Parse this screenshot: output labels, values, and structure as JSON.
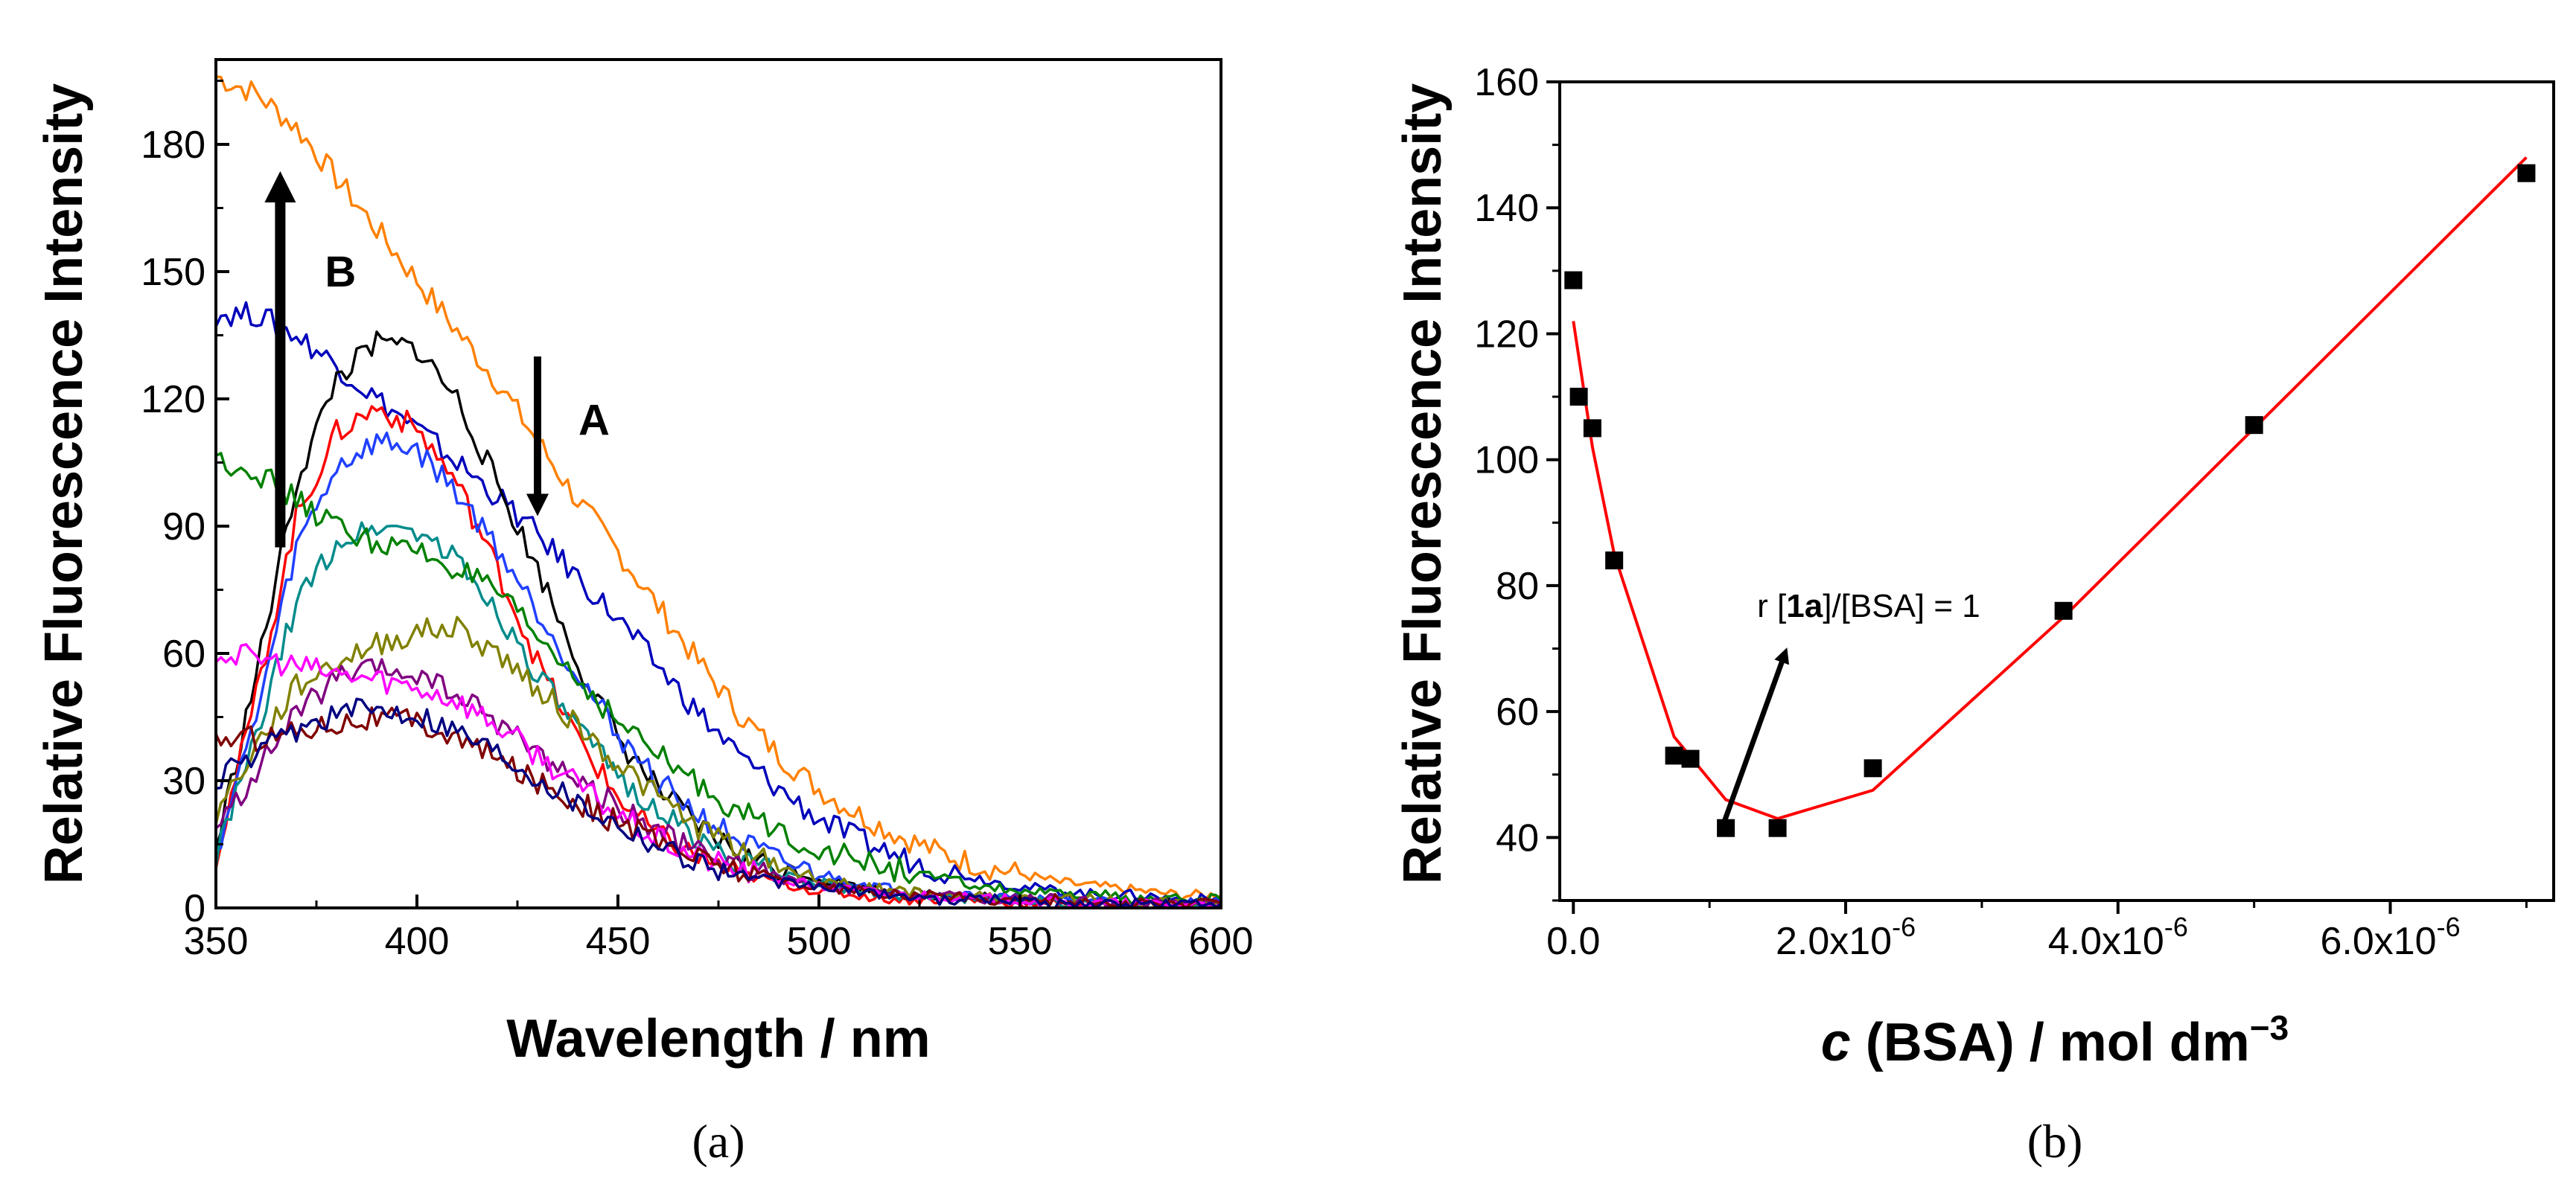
{
  "chart_data": [
    {
      "panel": "(a)",
      "type": "line",
      "xlabel": "Wavelength / nm",
      "ylabel": "Relative Fluorescence Intensity",
      "xlim": [
        350,
        600
      ],
      "ylim": [
        0,
        200
      ],
      "xticks": [
        350,
        400,
        450,
        500,
        550,
        600
      ],
      "yticks": [
        0,
        30,
        60,
        90,
        120,
        150,
        180
      ],
      "annotations": [
        {
          "label": "A",
          "direction": "down",
          "x": 430,
          "y_from": 130,
          "y_to": 95
        },
        {
          "label": "B",
          "direction": "up",
          "x": 366,
          "y_from": 85,
          "y_to": 170
        }
      ],
      "x": [
        350,
        360,
        370,
        380,
        390,
        400,
        410,
        420,
        430,
        440,
        450,
        460,
        470,
        480,
        490,
        500,
        510,
        520,
        530,
        540,
        550,
        560,
        570,
        580,
        590,
        600
      ],
      "series": [
        {
          "name": "orange",
          "color": "#ff8000",
          "values": [
            196,
            192,
            184,
            172,
            160,
            148,
            136,
            124,
            110,
            96,
            84,
            71,
            58,
            46,
            36,
            28,
            22,
            17,
            13,
            10,
            8,
            6,
            5,
            4,
            3,
            3
          ]
        },
        {
          "name": "blue",
          "color": "#0000bb",
          "values": [
            140,
            140,
            135,
            128,
            120,
            113,
            105,
            97,
            88,
            78,
            68,
            57,
            46,
            36,
            28,
            21,
            16,
            12,
            9,
            7,
            5,
            4,
            3,
            3,
            2,
            2
          ]
        },
        {
          "name": "black",
          "color": "#000000",
          "values": [
            14,
            55,
            100,
            125,
            133,
            132,
            120,
            100,
            80,
            58,
            40,
            28,
            19,
            13,
            9,
            7,
            5,
            4,
            3,
            3,
            2,
            2,
            2,
            1,
            1,
            1
          ]
        },
        {
          "name": "red",
          "color": "#ff0000",
          "values": [
            12,
            50,
            92,
            112,
            118,
            113,
            100,
            80,
            58,
            40,
            26,
            17,
            12,
            8,
            6,
            4,
            3,
            2,
            2,
            2,
            1,
            1,
            1,
            1,
            1,
            1
          ]
        },
        {
          "name": "royalblue",
          "color": "#2040ff",
          "values": [
            13,
            45,
            85,
            104,
            110,
            108,
            98,
            85,
            70,
            55,
            41,
            30,
            22,
            16,
            11,
            8,
            6,
            4,
            3,
            3,
            2,
            2,
            2,
            1,
            1,
            1
          ]
        },
        {
          "name": "teal",
          "color": "#008b8b",
          "values": [
            12,
            40,
            72,
            86,
            90,
            89,
            82,
            70,
            55,
            42,
            31,
            23,
            16,
            11,
            8,
            6,
            4,
            3,
            3,
            2,
            2,
            1,
            1,
            1,
            1,
            1
          ]
        },
        {
          "name": "green",
          "color": "#008000",
          "values": [
            106,
            103,
            96,
            90,
            86,
            84,
            80,
            74,
            64,
            54,
            44,
            36,
            29,
            23,
            18,
            14,
            11,
            9,
            7,
            5,
            4,
            3,
            3,
            2,
            2,
            2
          ]
        },
        {
          "name": "olive",
          "color": "#808000",
          "values": [
            22,
            38,
            52,
            58,
            62,
            65,
            66,
            60,
            52,
            43,
            34,
            26,
            19,
            14,
            10,
            7,
            5,
            4,
            3,
            3,
            2,
            2,
            2,
            1,
            1,
            1
          ]
        },
        {
          "name": "purple",
          "color": "#800080",
          "values": [
            18,
            32,
            46,
            54,
            56,
            55,
            50,
            44,
            37,
            30,
            24,
            18,
            13,
            10,
            7,
            5,
            4,
            3,
            3,
            2,
            2,
            2,
            1,
            1,
            1,
            1
          ]
        },
        {
          "name": "pink",
          "color": "#ff00ff",
          "values": [
            60,
            59,
            57,
            55,
            54,
            52,
            49,
            43,
            36,
            29,
            22,
            16,
            12,
            9,
            7,
            5,
            4,
            3,
            3,
            2,
            2,
            1,
            1,
            1,
            1,
            1
          ]
        },
        {
          "name": "darkred",
          "color": "#800000",
          "values": [
            40,
            40,
            42,
            44,
            45,
            44,
            40,
            35,
            30,
            25,
            20,
            16,
            12,
            9,
            7,
            5,
            4,
            3,
            3,
            2,
            2,
            2,
            1,
            1,
            1,
            1
          ]
        },
        {
          "name": "navy",
          "color": "#000080",
          "values": [
            30,
            36,
            42,
            46,
            47,
            46,
            42,
            37,
            31,
            25,
            20,
            15,
            11,
            8,
            6,
            5,
            4,
            3,
            2,
            2,
            2,
            1,
            1,
            1,
            1,
            1
          ]
        }
      ]
    },
    {
      "panel": "(b)",
      "type": "scatter",
      "xlabel_italic": "c",
      "xlabel_rest": " (BSA) / mol dm",
      "xlabel_sup": "−3",
      "ylabel": "Relative Fluorescence Intensity",
      "xlim": [
        -0.1,
        7.2
      ],
      "x_scale_note": "values in units of 1e-6 mol dm-3",
      "ylim": [
        30,
        160
      ],
      "yticks": [
        40,
        60,
        80,
        100,
        120,
        140,
        160
      ],
      "xtick_labels": [
        {
          "value": 0,
          "base": "0.0",
          "exp": ""
        },
        {
          "value": 2,
          "base": "2.0x10",
          "exp": "-6"
        },
        {
          "value": 4,
          "base": "4.0x10",
          "exp": "-6"
        },
        {
          "value": 6,
          "base": "6.0x10",
          "exp": "-6"
        }
      ],
      "points": {
        "x": [
          0.0,
          0.04,
          0.14,
          0.3,
          0.74,
          0.86,
          1.12,
          1.5,
          2.2,
          3.6,
          5.0,
          7.0
        ],
        "y": [
          128.5,
          110,
          105,
          84,
          53,
          52.5,
          41.5,
          41.5,
          51,
          76,
          105.5,
          145.5
        ]
      },
      "fit_line": {
        "color": "#ff0000",
        "x": [
          0.0,
          0.14,
          0.3,
          0.74,
          1.12,
          1.5,
          2.2,
          3.6,
          5.0,
          7.0
        ],
        "y": [
          122,
          102,
          85,
          56,
          46,
          43,
          47.5,
          75,
          105,
          148
        ]
      },
      "annotation": {
        "prefix": "r [",
        "bold": "1a",
        "suffix": "]/[BSA] = 1",
        "arrow_from": [
          1.1,
          42
        ],
        "arrow_to": [
          1.55,
          69
        ]
      }
    }
  ]
}
